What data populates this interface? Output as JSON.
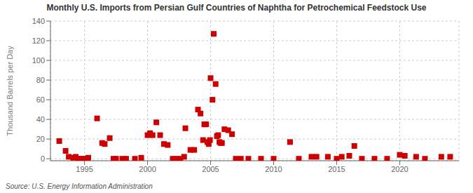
{
  "chart_data": {
    "type": "scatter",
    "title": "Monthly U.S. Imports from Persian Gulf Countries of Naphtha for Petrochemical Feedstock Use",
    "ylabel": "Thousand Barrels per Day",
    "source": "Source: U.S. Energy Information Administration",
    "color": "#cc0000",
    "marker": "square",
    "grid": true,
    "xlim": [
      1992.3,
      2024.7
    ],
    "xticks": [
      1995,
      2000,
      2005,
      2010,
      2015,
      2020
    ],
    "ylim": [
      -2,
      140
    ],
    "yticks": [
      0,
      20,
      40,
      60,
      80,
      100,
      120,
      140
    ],
    "x": [
      1993.0,
      1993.5,
      1993.75,
      1994.1,
      1994.3,
      1994.5,
      1994.7,
      1995.0,
      1995.1,
      1995.3,
      1996.0,
      1996.4,
      1996.6,
      1997.0,
      1997.3,
      1997.5,
      1998.0,
      1998.3,
      1999.0,
      1999.5,
      2000.0,
      2000.2,
      2000.4,
      2000.7,
      2001.0,
      2001.3,
      2001.6,
      2002.0,
      2002.3,
      2002.6,
      2002.9,
      2003.0,
      2003.4,
      2003.7,
      2004.0,
      2004.2,
      2004.4,
      2004.5,
      2004.65,
      2004.75,
      2004.85,
      2004.95,
      2005.0,
      2005.15,
      2005.25,
      2005.4,
      2005.5,
      2005.6,
      2005.7,
      2005.8,
      2005.9,
      2006.1,
      2006.4,
      2006.7,
      2007.0,
      2007.4,
      2008.0,
      2009.0,
      2010.0,
      2011.3,
      2012.0,
      2013.0,
      2013.4,
      2014.3,
      2015.0,
      2015.4,
      2016.0,
      2016.4,
      2017.0,
      2018.0,
      2019.0,
      2020.0,
      2020.4,
      2021.3,
      2022.0,
      2023.3,
      2024.0
    ],
    "values": [
      18,
      8,
      2,
      1,
      2,
      0,
      0,
      0,
      0,
      1,
      41,
      16,
      15,
      21,
      0,
      0,
      0,
      0,
      0,
      1,
      24,
      26,
      24,
      37,
      24,
      15,
      14,
      0,
      0,
      0,
      2,
      31,
      9,
      9,
      50,
      46,
      19,
      35,
      35,
      17,
      15,
      19,
      82,
      60,
      127,
      76,
      23,
      24,
      17,
      16,
      16,
      30,
      29,
      25,
      0,
      0,
      0,
      0,
      0,
      17,
      0,
      2,
      2,
      2,
      0,
      2,
      3,
      13,
      0,
      0,
      0,
      4,
      3,
      2,
      0,
      2,
      2
    ]
  }
}
